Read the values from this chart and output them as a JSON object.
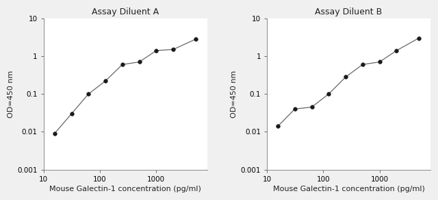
{
  "panel_A": {
    "title": "Assay Diluent A",
    "x": [
      15.6,
      31.25,
      62.5,
      125,
      250,
      500,
      1000,
      2000,
      5000
    ],
    "y": [
      0.009,
      0.03,
      0.1,
      0.22,
      0.6,
      0.7,
      1.4,
      1.5,
      2.8
    ],
    "xlim": [
      10,
      8000
    ],
    "ylim": [
      0.001,
      10
    ],
    "xlabel": "Mouse Galectin-1 concentration (pg/ml)",
    "ylabel": "OD=450 nm",
    "xticks": [
      10,
      100,
      1000
    ],
    "xtick_labels": [
      "10",
      "100",
      "1000"
    ],
    "yticks": [
      0.001,
      0.01,
      0.1,
      1,
      10
    ],
    "ytick_labels": [
      "0.001",
      "0.01",
      "0.1",
      "1",
      "10"
    ]
  },
  "panel_B": {
    "title": "Assay Diluent B",
    "x": [
      15.6,
      31.25,
      62.5,
      125,
      250,
      500,
      1000,
      2000,
      5000
    ],
    "y": [
      0.014,
      0.04,
      0.045,
      0.1,
      0.28,
      0.6,
      0.7,
      1.4,
      3.0
    ],
    "xlim": [
      10,
      8000
    ],
    "ylim": [
      0.001,
      10
    ],
    "xlabel": "Mouse Galectin-1 concentration (pg/ml)",
    "ylabel": "OD=450 nm",
    "xticks": [
      10,
      100,
      1000
    ],
    "xtick_labels": [
      "10",
      "100",
      "1000"
    ],
    "yticks": [
      0.001,
      0.01,
      0.1,
      1,
      10
    ],
    "ytick_labels": [
      "0.001",
      "0.01",
      "0.1",
      "1",
      "10"
    ]
  },
  "line_color": "#666666",
  "marker_color": "#1a1a1a",
  "marker_size": 4,
  "title_fontsize": 9,
  "label_fontsize": 8,
  "tick_fontsize": 7.5,
  "bg_color": "#f0f0f0",
  "axes_bg_color": "#ffffff"
}
